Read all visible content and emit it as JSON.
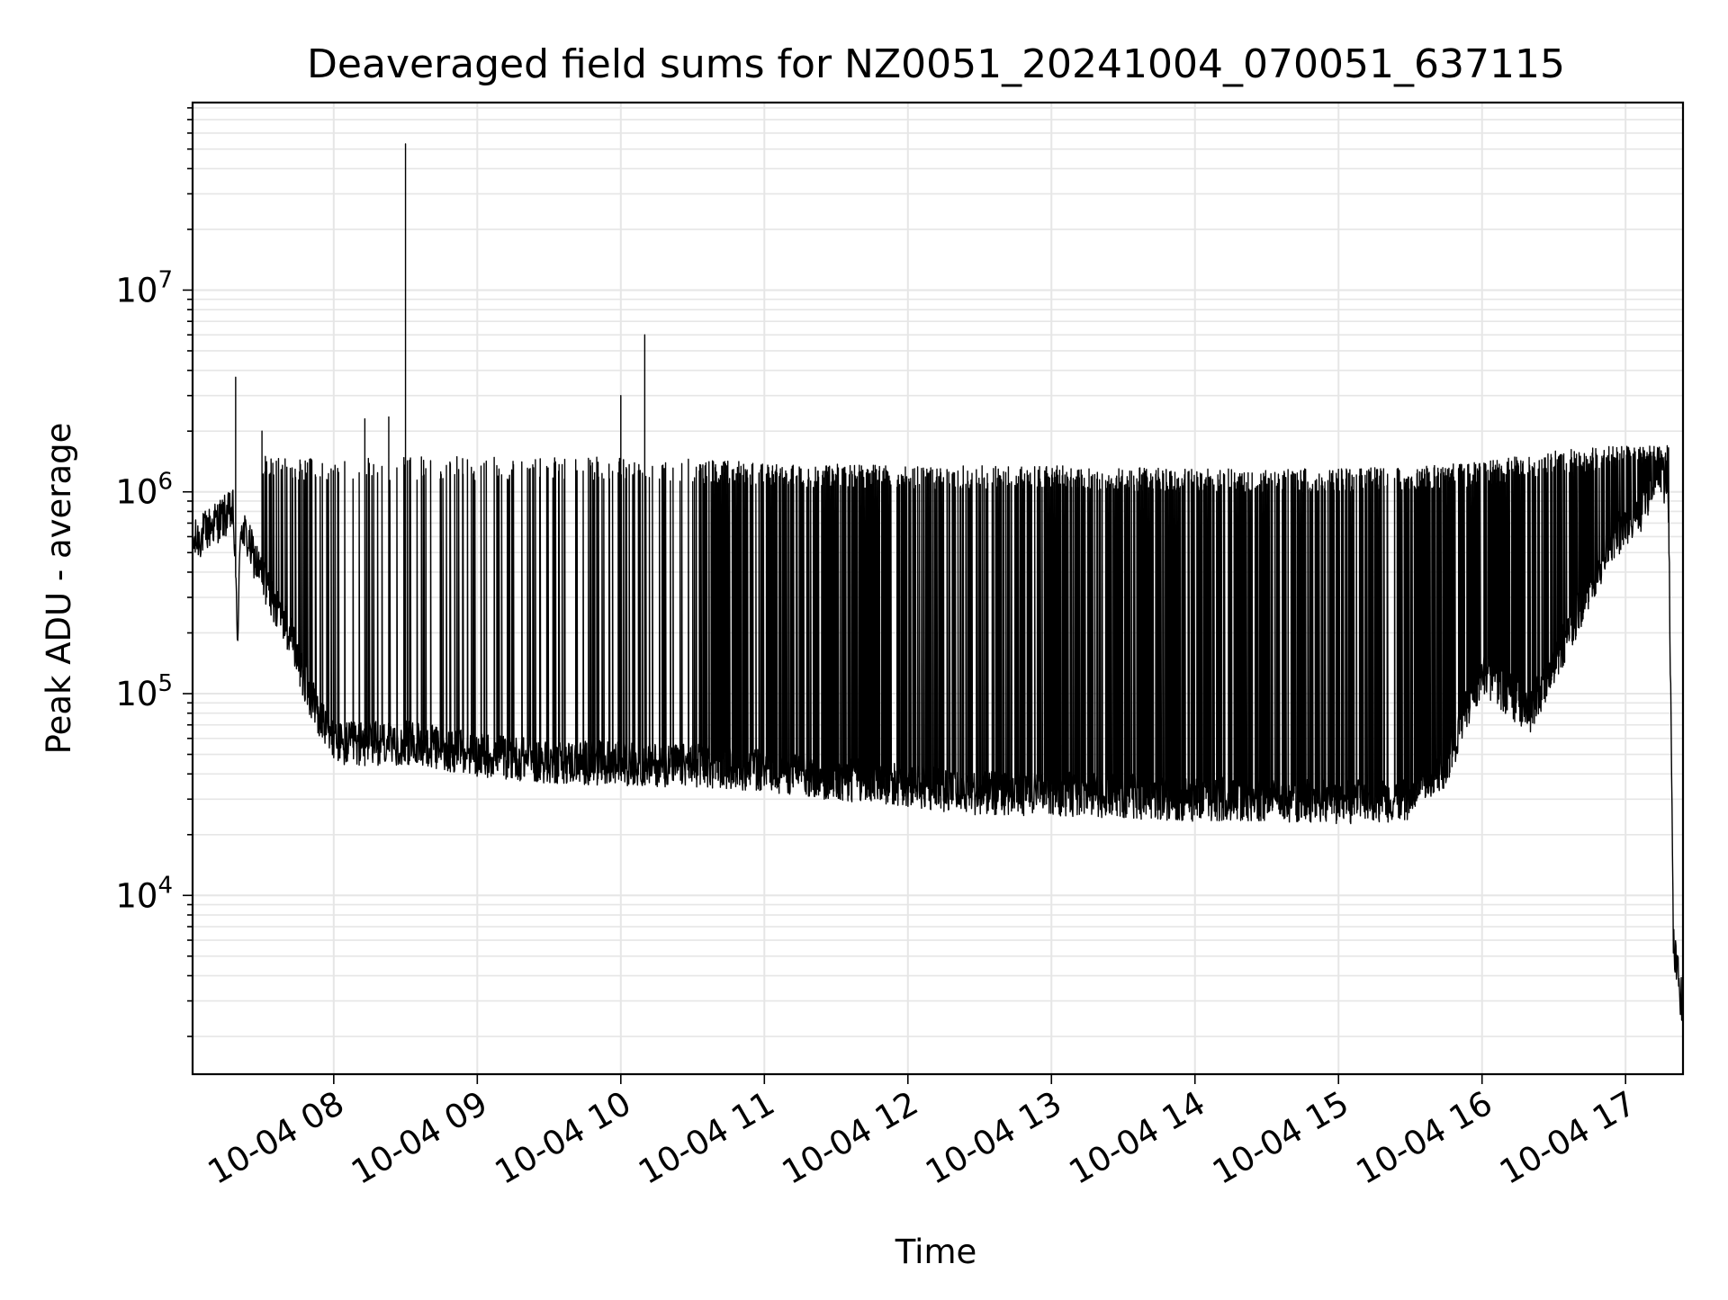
{
  "chart_data": {
    "type": "line",
    "title": "Deaveraged field sums for NZ0051_20241004_070051_637115",
    "xlabel": "Time",
    "ylabel": "Peak ADU - average",
    "yscale": "log",
    "ylim": [
      1300,
      85000000
    ],
    "xlim": [
      "2024-10-04 07:01",
      "2024-10-04 17:24"
    ],
    "grid": true,
    "line_color": "#000000",
    "grid_color": "#e6e6e6",
    "x_ticks": [
      "2024-10-04 08:00",
      "2024-10-04 09:00",
      "2024-10-04 10:00",
      "2024-10-04 11:00",
      "2024-10-04 12:00",
      "2024-10-04 13:00",
      "2024-10-04 14:00",
      "2024-10-04 15:00",
      "2024-10-04 16:00",
      "2024-10-04 17:00"
    ],
    "x_tick_labels": [
      "10-04 08",
      "10-04 09",
      "10-04 10",
      "10-04 11",
      "10-04 12",
      "10-04 13",
      "10-04 14",
      "10-04 15",
      "10-04 16",
      "10-04 17"
    ],
    "y_ticks": [
      10000,
      100000,
      1000000,
      10000000
    ],
    "y_tick_labels": [
      {
        "base": "10",
        "exp": "4"
      },
      {
        "base": "10",
        "exp": "5"
      },
      {
        "base": "10",
        "exp": "6"
      },
      {
        "base": "10",
        "exp": "7"
      }
    ],
    "series": [
      {
        "baseline": [
          [
            "2024-10-04 07:01",
            550000
          ],
          [
            "2024-10-04 07:10",
            700000
          ],
          [
            "2024-10-04 07:18",
            800000
          ],
          [
            "2024-10-04 07:20",
            180000
          ],
          [
            "2024-10-04 07:21",
            700000
          ],
          [
            "2024-10-04 07:30",
            380000
          ],
          [
            "2024-10-04 07:40",
            220000
          ],
          [
            "2024-10-04 07:50",
            100000
          ],
          [
            "2024-10-04 08:00",
            56000
          ],
          [
            "2024-10-04 08:30",
            57000
          ],
          [
            "2024-10-04 09:00",
            50000
          ],
          [
            "2024-10-04 09:30",
            46000
          ],
          [
            "2024-10-04 10:00",
            45000
          ],
          [
            "2024-10-04 10:30",
            44000
          ],
          [
            "2024-10-04 11:00",
            42000
          ],
          [
            "2024-10-04 11:30",
            38000
          ],
          [
            "2024-10-04 12:00",
            35000
          ],
          [
            "2024-10-04 12:30",
            32000
          ],
          [
            "2024-10-04 13:00",
            32000
          ],
          [
            "2024-10-04 13:30",
            31000
          ],
          [
            "2024-10-04 14:00",
            30000
          ],
          [
            "2024-10-04 14:30",
            30000
          ],
          [
            "2024-10-04 15:00",
            29000
          ],
          [
            "2024-10-04 15:30",
            30000
          ],
          [
            "2024-10-04 15:45",
            45000
          ],
          [
            "2024-10-04 16:00",
            130000
          ],
          [
            "2024-10-04 16:20",
            80000
          ],
          [
            "2024-10-04 16:40",
            250000
          ],
          [
            "2024-10-04 16:55",
            600000
          ],
          [
            "2024-10-04 17:05",
            750000
          ],
          [
            "2024-10-04 17:10",
            1000000
          ],
          [
            "2024-10-04 17:14",
            1400000
          ],
          [
            "2024-10-04 17:18",
            900000
          ],
          [
            "2024-10-04 17:20",
            5500
          ],
          [
            "2024-10-04 17:22",
            4000
          ],
          [
            "2024-10-04 17:24",
            2600
          ]
        ],
        "spike_envelope": [
          [
            "2024-10-04 07:20",
            1500000
          ],
          [
            "2024-10-04 08:00",
            1500000
          ],
          [
            "2024-10-04 09:00",
            1500000
          ],
          [
            "2024-10-04 10:00",
            1500000
          ],
          [
            "2024-10-04 11:00",
            1400000
          ],
          [
            "2024-10-04 12:00",
            1350000
          ],
          [
            "2024-10-04 13:00",
            1350000
          ],
          [
            "2024-10-04 14:00",
            1300000
          ],
          [
            "2024-10-04 15:00",
            1300000
          ],
          [
            "2024-10-04 16:00",
            1400000
          ],
          [
            "2024-10-04 16:30",
            1600000
          ],
          [
            "2024-10-04 17:00",
            1700000
          ]
        ],
        "peaks": [
          [
            "2024-10-04 07:19",
            3700000
          ],
          [
            "2024-10-04 07:30",
            2000000
          ],
          [
            "2024-10-04 08:13",
            2300000
          ],
          [
            "2024-10-04 08:23",
            2350000
          ],
          [
            "2024-10-04 08:30",
            53000000
          ],
          [
            "2024-10-04 10:00",
            3000000
          ],
          [
            "2024-10-04 10:10",
            6000000
          ]
        ]
      }
    ]
  }
}
